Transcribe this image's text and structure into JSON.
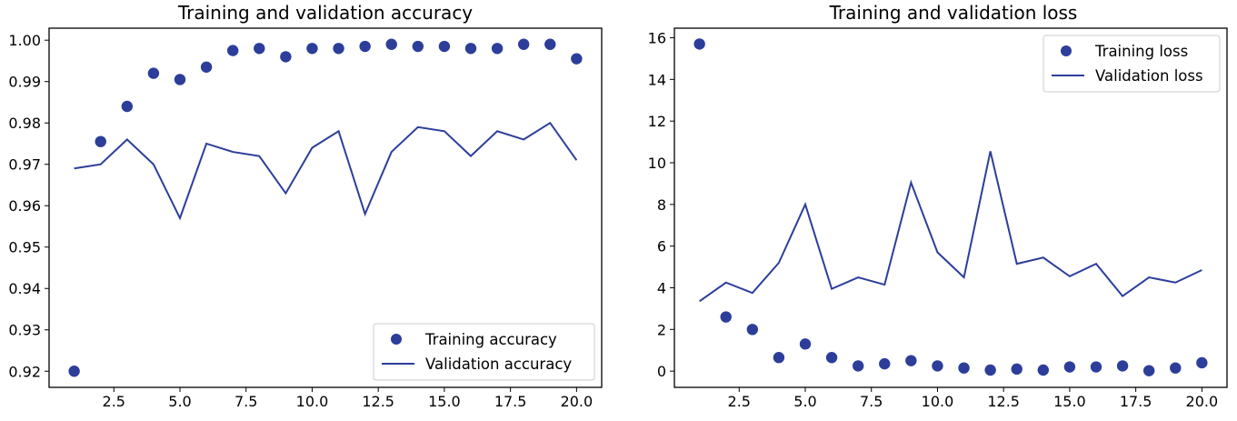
{
  "chart_data": [
    {
      "type": "line",
      "title": "Training and validation accuracy",
      "xlabel": "",
      "ylabel": "",
      "x": [
        1,
        2,
        3,
        4,
        5,
        6,
        7,
        8,
        9,
        10,
        11,
        12,
        13,
        14,
        15,
        16,
        17,
        18,
        19,
        20
      ],
      "series": [
        {
          "name": "Training accuracy",
          "style": "markers",
          "values": [
            0.92,
            0.9755,
            0.984,
            0.992,
            0.9905,
            0.9935,
            0.9975,
            0.998,
            0.996,
            0.998,
            0.998,
            0.9985,
            0.999,
            0.9985,
            0.9985,
            0.998,
            0.998,
            0.999,
            0.999,
            0.9955
          ]
        },
        {
          "name": "Validation accuracy",
          "style": "line",
          "values": [
            0.969,
            0.97,
            0.976,
            0.97,
            0.957,
            0.975,
            0.973,
            0.972,
            0.963,
            0.974,
            0.978,
            0.958,
            0.973,
            0.979,
            0.978,
            0.972,
            0.978,
            0.976,
            0.98,
            0.971
          ]
        }
      ],
      "xlim": [
        0.05,
        20.95
      ],
      "ylim": [
        0.9161,
        1.0029
      ],
      "xticks": [
        2.5,
        5.0,
        7.5,
        10.0,
        12.5,
        15.0,
        17.5,
        20.0
      ],
      "xtick_labels": [
        "2.5",
        "5.0",
        "7.5",
        "10.0",
        "12.5",
        "15.0",
        "17.5",
        "20.0"
      ],
      "yticks": [
        0.92,
        0.93,
        0.94,
        0.95,
        0.96,
        0.97,
        0.98,
        0.99,
        1.0
      ],
      "ytick_labels": [
        "0.92",
        "0.93",
        "0.94",
        "0.95",
        "0.96",
        "0.97",
        "0.98",
        "0.99",
        "1.00"
      ],
      "legend": "lower-right"
    },
    {
      "type": "line",
      "title": "Training and validation loss",
      "xlabel": "",
      "ylabel": "",
      "x": [
        1,
        2,
        3,
        4,
        5,
        6,
        7,
        8,
        9,
        10,
        11,
        12,
        13,
        14,
        15,
        16,
        17,
        18,
        19,
        20
      ],
      "series": [
        {
          "name": "Training loss",
          "style": "markers",
          "values": [
            15.7,
            2.6,
            2.0,
            0.65,
            1.3,
            0.65,
            0.25,
            0.35,
            0.5,
            0.25,
            0.15,
            0.05,
            0.1,
            0.05,
            0.2,
            0.2,
            0.25,
            0.02,
            0.15,
            0.4
          ]
        },
        {
          "name": "Validation loss",
          "style": "line",
          "values": [
            3.35,
            4.25,
            3.75,
            5.2,
            8.0,
            3.95,
            4.5,
            4.15,
            9.05,
            5.7,
            4.5,
            10.55,
            5.15,
            5.45,
            4.55,
            5.15,
            3.6,
            4.5,
            4.25,
            4.85
          ]
        }
      ],
      "xlim": [
        0.05,
        20.95
      ],
      "ylim": [
        -0.78,
        16.46
      ],
      "xticks": [
        2.5,
        5.0,
        7.5,
        10.0,
        12.5,
        15.0,
        17.5,
        20.0
      ],
      "xtick_labels": [
        "2.5",
        "5.0",
        "7.5",
        "10.0",
        "12.5",
        "15.0",
        "17.5",
        "20.0"
      ],
      "yticks": [
        0,
        2,
        4,
        6,
        8,
        10,
        12,
        14,
        16
      ],
      "ytick_labels": [
        "0",
        "2",
        "4",
        "6",
        "8",
        "10",
        "12",
        "14",
        "16"
      ],
      "legend": "upper-right"
    }
  ],
  "colors": {
    "series": "#2c3e9a",
    "axes": "#000000",
    "background": "#ffffff"
  }
}
